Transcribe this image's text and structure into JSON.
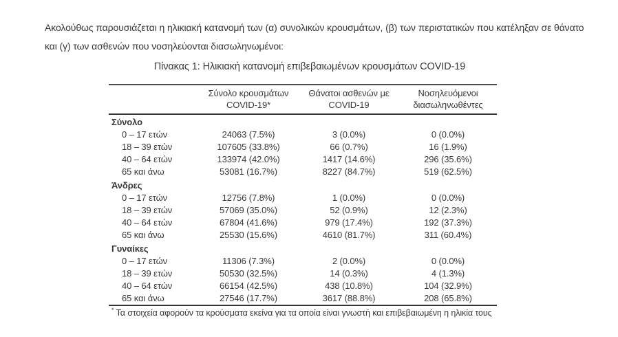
{
  "intro": "Ακολούθως παρουσιάζεται η ηλικιακή κατανομή των (α) συνολικών κρουσμάτων, (β) των περιστατικών που κατέληξαν σε θάνατο και (γ) των ασθενών που νοσηλεύονται διασωληνωμένοι:",
  "table": {
    "title": "Πίνακας 1: Ηλικιακή κατανομή επιβεβαιωμένων κρουσμάτων COVID-19",
    "columns": [
      {
        "id": "age",
        "lines": []
      },
      {
        "id": "cases",
        "lines": [
          "Σύνολο κρουσμάτων",
          "COVID-19*"
        ]
      },
      {
        "id": "deaths",
        "lines": [
          "Θάνατοι ασθενών με",
          "COVID-19"
        ]
      },
      {
        "id": "intubated",
        "lines": [
          "Νοσηλευόμενοι",
          "διασωληνωθέντες"
        ]
      }
    ],
    "groups": [
      {
        "label": "Σύνολο",
        "rows": [
          {
            "age": "0 – 17 ετών",
            "cases": "24063 (7.5%)",
            "deaths": "3 (0.0%)",
            "intubated": "0 (0.0%)"
          },
          {
            "age": "18 – 39 ετών",
            "cases": "107605 (33.8%)",
            "deaths": "66 (0.7%)",
            "intubated": "16 (1.9%)"
          },
          {
            "age": "40 – 64 ετών",
            "cases": "133974 (42.0%)",
            "deaths": "1417 (14.6%)",
            "intubated": "296 (35.6%)"
          },
          {
            "age": "65 και άνω",
            "cases": "53081 (16.7%)",
            "deaths": "8227 (84.7%)",
            "intubated": "519 (62.5%)"
          }
        ]
      },
      {
        "label": "Άνδρες",
        "rows": [
          {
            "age": "0 – 17 ετών",
            "cases": "12756 (7.8%)",
            "deaths": "1 (0.0%)",
            "intubated": "0 (0.0%)"
          },
          {
            "age": "18 – 39 ετών",
            "cases": "57069 (35.0%)",
            "deaths": "52 (0.9%)",
            "intubated": "12 (2.3%)"
          },
          {
            "age": "40 – 64 ετών",
            "cases": "67804 (41.6%)",
            "deaths": "979 (17.4%)",
            "intubated": "192 (37.3%)"
          },
          {
            "age": "65 και άνω",
            "cases": "25530 (15.6%)",
            "deaths": "4610 (81.7%)",
            "intubated": "311 (60.4%)"
          }
        ]
      },
      {
        "label": "Γυναίκες",
        "rows": [
          {
            "age": "0 – 17 ετών",
            "cases": "11306 (7.3%)",
            "deaths": "2 (0.0%)",
            "intubated": "0 (0.0%)"
          },
          {
            "age": "18 – 39 ετών",
            "cases": "50530 (32.5%)",
            "deaths": "14 (0.3%)",
            "intubated": "4 (1.3%)"
          },
          {
            "age": "40 – 64 ετών",
            "cases": "66154 (42.5%)",
            "deaths": "438 (10.8%)",
            "intubated": "104 (32.9%)"
          },
          {
            "age": "65 και άνω",
            "cases": "27546 (17.7%)",
            "deaths": "3617 (88.8%)",
            "intubated": "208 (65.8%)"
          }
        ]
      }
    ],
    "footnote_marker": "*",
    "footnote": "Τα στοιχεία αφορούν τα κρούσματα εκείνα για τα οποία είναι γνωστή και επιβεβαιωμένη η ηλικία τους",
    "colors": {
      "text": "#383838",
      "border": "#3f3f3f",
      "background": "#ffffff"
    }
  }
}
